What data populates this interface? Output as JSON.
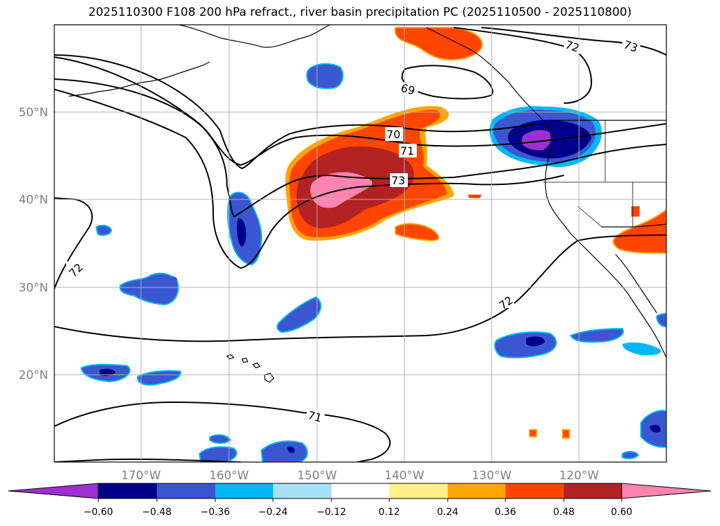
{
  "title": "2025110300 F108 200 hPa refract., river basin precipitation PC (2025110500 - 2025110800)",
  "lon_ticks": [
    "170°W",
    "160°W",
    "150°W",
    "140°W",
    "130°W",
    "120°W"
  ],
  "lat_ticks": [
    "50°N",
    "40°N",
    "30°N",
    "20°N"
  ],
  "contour_labels": [
    "69",
    "70",
    "71",
    "73",
    "72",
    "72",
    "72",
    "73",
    "71"
  ],
  "colorbar": {
    "tick_labels": [
      "−0.60",
      "−0.48",
      "−0.36",
      "−0.24",
      "−0.12",
      "0.12",
      "0.24",
      "0.36",
      "0.48",
      "0.60"
    ],
    "colors": [
      "#9b30d0",
      "#00008b",
      "#3a56d0",
      "#00b8f8",
      "#a8e0f8",
      "#ffffff",
      "#fff08a",
      "#ffa500",
      "#ff4500",
      "#b22222",
      "#ff85b0"
    ]
  },
  "colors": {
    "contour": "#000000",
    "grid": "#b0b0b0",
    "coast": "#000000"
  }
}
